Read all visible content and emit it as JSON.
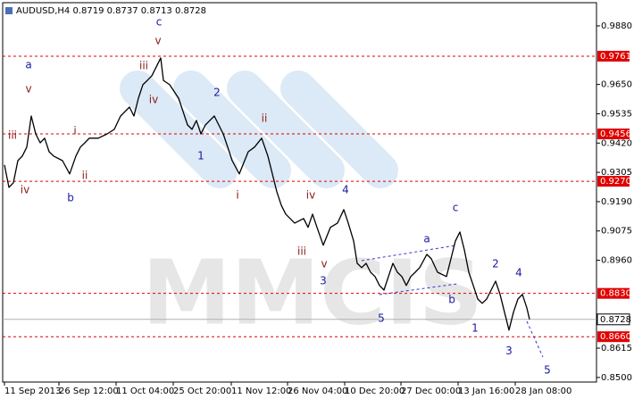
{
  "chart_data": {
    "type": "line",
    "title": "AUDUSD,H4  0.8719 0.8737 0.8713 0.8728",
    "watermark": "MMCIS",
    "color": "#000000",
    "x": [
      2,
      7,
      12,
      17,
      22,
      27,
      32,
      37,
      42,
      47,
      52,
      57,
      67,
      75,
      82,
      87,
      92,
      97,
      107,
      117,
      125,
      132,
      142,
      147,
      152,
      157,
      162,
      167,
      172,
      177,
      180,
      187,
      197,
      202,
      207,
      212,
      217,
      222,
      227,
      232,
      237,
      242,
      247,
      252,
      257,
      265,
      269,
      275,
      282,
      290,
      297,
      302,
      307,
      312,
      317,
      327,
      337,
      342,
      347,
      352,
      359,
      367,
      375,
      382,
      387,
      393,
      397,
      402,
      407,
      412,
      417,
      422,
      427,
      432,
      437,
      442,
      447,
      452,
      457,
      462,
      467,
      475,
      480,
      487,
      497,
      502,
      507,
      512,
      517,
      522,
      527,
      532,
      537,
      542,
      547,
      552,
      557,
      562,
      567,
      572,
      577,
      582,
      587,
      590
    ],
    "values": [
      0.9334,
      0.9246,
      0.9264,
      0.9351,
      0.9369,
      0.9404,
      0.9526,
      0.9456,
      0.9421,
      0.9439,
      0.9386,
      0.9369,
      0.9351,
      0.9299,
      0.9369,
      0.9404,
      0.9421,
      0.9439,
      0.9439,
      0.9456,
      0.9474,
      0.9526,
      0.9561,
      0.9526,
      0.9596,
      0.9649,
      0.9666,
      0.9684,
      0.9719,
      0.9754,
      0.9666,
      0.9649,
      0.9596,
      0.9544,
      0.9491,
      0.9474,
      0.9509,
      0.9456,
      0.9491,
      0.9509,
      0.9526,
      0.9491,
      0.9456,
      0.9404,
      0.9351,
      0.9299,
      0.9334,
      0.9386,
      0.9404,
      0.9439,
      0.9369,
      0.9299,
      0.9229,
      0.9176,
      0.9141,
      0.9106,
      0.9124,
      0.9089,
      0.9141,
      0.9089,
      0.9019,
      0.9089,
      0.9106,
      0.9159,
      0.9106,
      0.9036,
      0.8948,
      0.8931,
      0.8948,
      0.8913,
      0.8896,
      0.8861,
      0.8843,
      0.8896,
      0.8948,
      0.8913,
      0.8896,
      0.8861,
      0.8896,
      0.8913,
      0.8931,
      0.8983,
      0.8966,
      0.8913,
      0.8896,
      0.8966,
      0.9036,
      0.9071,
      0.9001,
      0.8913,
      0.8861,
      0.8808,
      0.8791,
      0.8808,
      0.8843,
      0.8878,
      0.8826,
      0.8756,
      0.8686,
      0.8756,
      0.8808,
      0.8826,
      0.8773,
      0.8728
    ],
    "xlim": [
      0,
      665
    ],
    "ylim": [
      0.8482,
      0.9971
    ],
    "xticks": [
      {
        "value": 2,
        "label": "11 Sep 2013"
      },
      {
        "value": 63,
        "label": "26 Sep 12:00"
      },
      {
        "value": 127,
        "label": "11 Oct 04:00"
      },
      {
        "value": 191,
        "label": "25 Oct 20:00"
      },
      {
        "value": 256,
        "label": "11 Nov 12:00"
      },
      {
        "value": 319,
        "label": "26 Nov 04:00"
      },
      {
        "value": 383,
        "label": "10 Dec 20:00"
      },
      {
        "value": 446,
        "label": "27 Dec 00:00"
      },
      {
        "value": 510,
        "label": "13 Jan 16:00"
      },
      {
        "value": 574,
        "label": "28 Jan 08:00"
      }
    ],
    "yticks": [
      {
        "value": 0.988,
        "label": "0.9880"
      },
      {
        "value": 0.965,
        "label": "0.9650"
      },
      0.9535,
      {
        "value": 0.942,
        "label": "0.9420"
      },
      0.9305,
      {
        "value": 0.919,
        "label": "0.9190"
      },
      0.9075,
      {
        "value": 0.896,
        "label": "0.8960"
      },
      0.8615,
      {
        "value": 0.85,
        "label": "0.8500"
      }
    ],
    "levels": [
      0.9761,
      0.9456,
      {
        "value": 0.927,
        "label": "0.9270"
      },
      {
        "value": 0.883,
        "label": "0.8830"
      },
      {
        "value": 0.866,
        "label": "0.8660"
      }
    ],
    "level_color": "#e00000",
    "current_price": 0.8728,
    "annotations": [
      {
        "text": "c",
        "x": 175,
        "y": 0.9894,
        "color": "#1a1aa0"
      },
      {
        "text": "a",
        "x": 29,
        "y": 0.9726,
        "color": "#1a1aa0"
      },
      {
        "text": "b",
        "x": 76,
        "y": 0.9204,
        "color": "#1a1aa0"
      },
      {
        "text": "2",
        "x": 240,
        "y": 0.9617,
        "color": "#1a1aa0"
      },
      {
        "text": "1",
        "x": 222,
        "y": 0.9369,
        "color": "#1a1aa0"
      },
      {
        "text": "4",
        "x": 384,
        "y": 0.9235,
        "color": "#1a1aa0"
      },
      {
        "text": "3",
        "x": 359,
        "y": 0.8878,
        "color": "#1a1aa0"
      },
      {
        "text": "5",
        "x": 424,
        "y": 0.8731,
        "color": "#1a1aa0"
      },
      {
        "text": "a",
        "x": 475,
        "y": 0.9043,
        "color": "#1a1aa0"
      },
      {
        "text": "b",
        "x": 503,
        "y": 0.8805,
        "color": "#1a1aa0"
      },
      {
        "text": "c",
        "x": 507,
        "y": 0.9166,
        "color": "#1a1aa0"
      },
      {
        "text": "2",
        "x": 552,
        "y": 0.8945,
        "color": "#1a1aa0"
      },
      {
        "text": "1",
        "x": 529,
        "y": 0.8693,
        "color": "#1a1aa0"
      },
      {
        "text": "4",
        "x": 578,
        "y": 0.891,
        "color": "#1a1aa0"
      },
      {
        "text": "3",
        "x": 567,
        "y": 0.8602,
        "color": "#1a1aa0"
      },
      {
        "text": "5",
        "x": 610,
        "y": 0.8528,
        "color": "#1a1aa0"
      },
      {
        "text": "v",
        "x": 174,
        "y": 0.982,
        "color": "#8b1a1a"
      },
      {
        "text": "iii",
        "x": 158,
        "y": 0.9722,
        "color": "#8b1a1a"
      },
      {
        "text": "iv",
        "x": 169,
        "y": 0.9589,
        "color": "#8b1a1a"
      },
      {
        "text": "v",
        "x": 29,
        "y": 0.9631,
        "color": "#8b1a1a"
      },
      {
        "text": "iii",
        "x": 11,
        "y": 0.9449,
        "color": "#8b1a1a"
      },
      {
        "text": "iv",
        "x": 25,
        "y": 0.9235,
        "color": "#8b1a1a"
      },
      {
        "text": "i",
        "x": 81,
        "y": 0.9467,
        "color": "#8b1a1a"
      },
      {
        "text": "ii",
        "x": 92,
        "y": 0.9292,
        "color": "#8b1a1a"
      },
      {
        "text": "ii",
        "x": 293,
        "y": 0.9516,
        "color": "#8b1a1a"
      },
      {
        "text": "i",
        "x": 263,
        "y": 0.9214,
        "color": "#8b1a1a"
      },
      {
        "text": "iv",
        "x": 345,
        "y": 0.9214,
        "color": "#8b1a1a"
      },
      {
        "text": "iii",
        "x": 335,
        "y": 0.8994,
        "color": "#8b1a1a"
      },
      {
        "text": "v",
        "x": 360,
        "y": 0.8945,
        "color": "#8b1a1a"
      }
    ]
  }
}
